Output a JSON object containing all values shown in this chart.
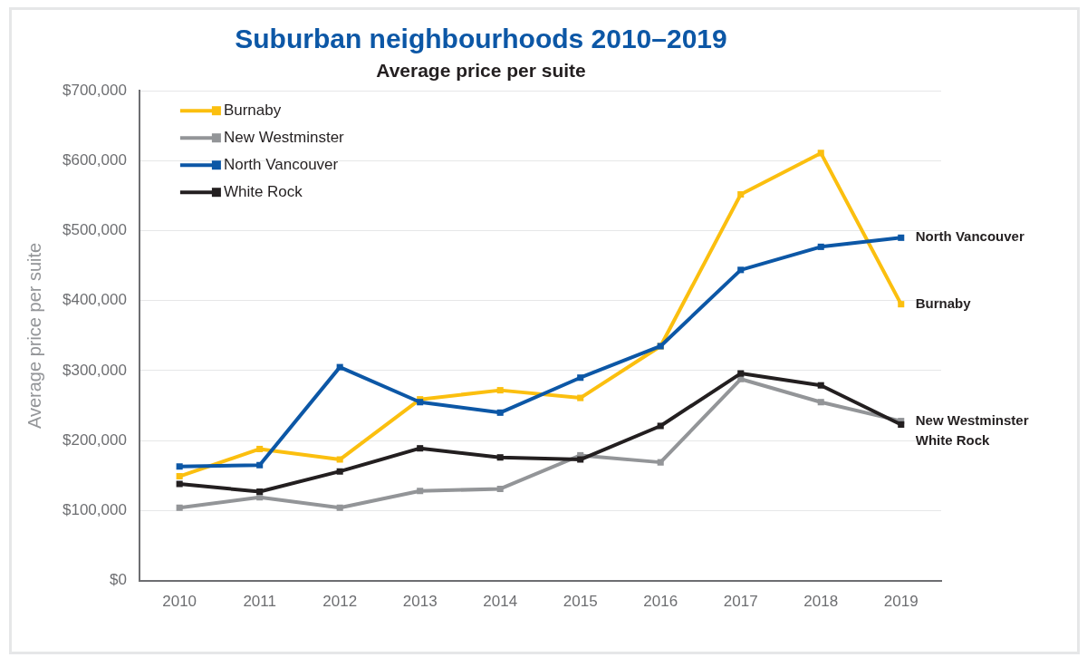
{
  "chart_data": {
    "type": "line",
    "title": "Suburban neighbourhoods 2010–2019",
    "subtitle": "Average price per suite",
    "ylabel": "Average price per suite",
    "categories": [
      "2010",
      "2011",
      "2012",
      "2013",
      "2014",
      "2015",
      "2016",
      "2017",
      "2018",
      "2019"
    ],
    "series": [
      {
        "name": "Burnaby",
        "color": "#fbbf0f",
        "values": [
          149000,
          188000,
          173000,
          259000,
          272000,
          261000,
          335000,
          552000,
          611000,
          395000
        ]
      },
      {
        "name": "New Westminster",
        "color": "#939598",
        "values": [
          104000,
          119000,
          104000,
          128000,
          131000,
          179000,
          169000,
          288000,
          255000,
          228000
        ]
      },
      {
        "name": "North Vancouver",
        "color": "#0c57a6",
        "values": [
          163000,
          165000,
          305000,
          255000,
          240000,
          290000,
          335000,
          444000,
          477000,
          490000
        ]
      },
      {
        "name": "White Rock",
        "color": "#231f20",
        "values": [
          138000,
          127000,
          156000,
          189000,
          176000,
          173000,
          221000,
          296000,
          279000,
          223000
        ]
      }
    ],
    "ylim": [
      0,
      700000
    ],
    "yticks": [
      {
        "value": 0,
        "label": "$0"
      },
      {
        "value": 100000,
        "label": "$100,000"
      },
      {
        "value": 200000,
        "label": "$200,000"
      },
      {
        "value": 300000,
        "label": "$300,000"
      },
      {
        "value": 400000,
        "label": "$400,000"
      },
      {
        "value": 500000,
        "label": "$500,000"
      },
      {
        "value": 600000,
        "label": "$600,000"
      },
      {
        "value": 700000,
        "label": "$700,000"
      }
    ],
    "grid": "y",
    "legend": "top left",
    "marker": "square",
    "line_style": "solid"
  }
}
